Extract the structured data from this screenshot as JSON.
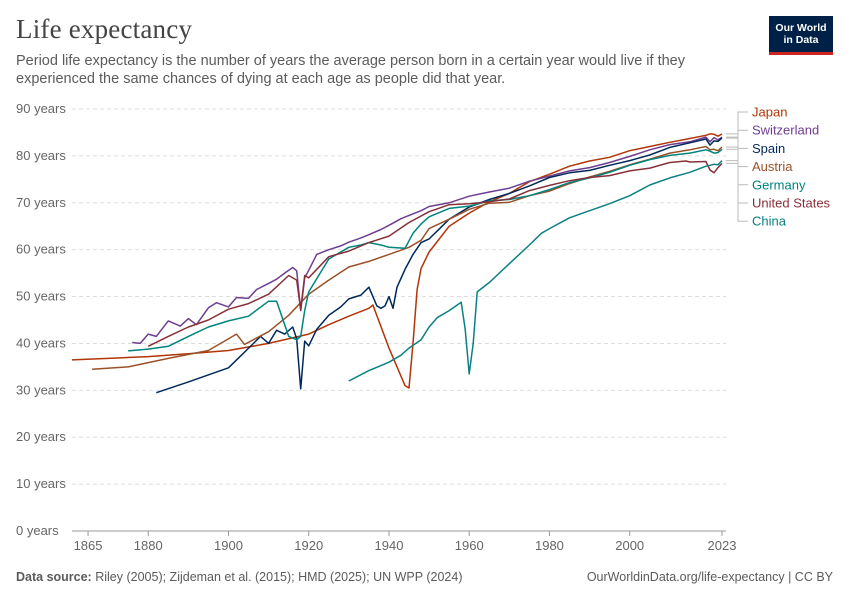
{
  "header": {
    "title": "Life expectancy",
    "subtitle": "Period life expectancy is the number of years the average person born in a certain year would live if they experienced the same chances of dying at each age as people did that year.",
    "logo_line1": "Our World",
    "logo_line2": "in Data"
  },
  "footer": {
    "source_label": "Data source:",
    "source_text": "Riley (2005); Zijdeman et al. (2015); HMD (2025); UN WPP (2024)",
    "url": "OurWorldinData.org/life-expectancy | CC BY"
  },
  "chart_data": {
    "type": "line",
    "title": "Life expectancy",
    "xlabel": "",
    "ylabel": "",
    "xlim": [
      1861,
      2024
    ],
    "ylim": [
      0,
      90
    ],
    "xticks": [
      {
        "value": 1865,
        "label": "1865"
      },
      {
        "value": 1880,
        "label": "1880"
      },
      {
        "value": 1900,
        "label": "1900"
      },
      {
        "value": 1920,
        "label": "1920"
      },
      {
        "value": 1940,
        "label": "1940"
      },
      {
        "value": 1960,
        "label": "1960"
      },
      {
        "value": 1980,
        "label": "1980"
      },
      {
        "value": 2000,
        "label": "2000"
      },
      {
        "value": 2023,
        "label": "2023"
      }
    ],
    "yticks": [
      {
        "value": 0,
        "label": "0 years"
      },
      {
        "value": 10,
        "label": "10 years"
      },
      {
        "value": 20,
        "label": "20 years"
      },
      {
        "value": 30,
        "label": "30 years"
      },
      {
        "value": 40,
        "label": "40 years"
      },
      {
        "value": 50,
        "label": "50 years"
      },
      {
        "value": 60,
        "label": "60 years"
      },
      {
        "value": 70,
        "label": "70 years"
      },
      {
        "value": 80,
        "label": "80 years"
      },
      {
        "value": 90,
        "label": "90 years"
      }
    ],
    "grid": true,
    "legend": "right",
    "series": [
      {
        "name": "Japan",
        "color": "#b13507",
        "points": [
          [
            1861,
            36.5
          ],
          [
            1870,
            36.8
          ],
          [
            1880,
            37.2
          ],
          [
            1890,
            37.8
          ],
          [
            1900,
            38.5
          ],
          [
            1910,
            40.0
          ],
          [
            1920,
            42.0
          ],
          [
            1925,
            44.0
          ],
          [
            1930,
            45.8
          ],
          [
            1935,
            47.5
          ],
          [
            1936,
            48.2
          ],
          [
            1940,
            39.0
          ],
          [
            1944,
            31.0
          ],
          [
            1945,
            30.5
          ],
          [
            1946,
            40.0
          ],
          [
            1947,
            51.5
          ],
          [
            1948,
            56.0
          ],
          [
            1950,
            59.5
          ],
          [
            1955,
            65.0
          ],
          [
            1960,
            67.8
          ],
          [
            1965,
            70.2
          ],
          [
            1970,
            72.0
          ],
          [
            1975,
            74.5
          ],
          [
            1980,
            76.1
          ],
          [
            1985,
            77.8
          ],
          [
            1990,
            78.9
          ],
          [
            1995,
            79.7
          ],
          [
            2000,
            81.1
          ],
          [
            2005,
            82.0
          ],
          [
            2010,
            82.9
          ],
          [
            2015,
            83.7
          ],
          [
            2019,
            84.4
          ],
          [
            2020,
            84.7
          ],
          [
            2021,
            84.6
          ],
          [
            2022,
            84.2
          ],
          [
            2023,
            84.7
          ]
        ]
      },
      {
        "name": "Switzerland",
        "color": "#6d3e91",
        "points": [
          [
            1876,
            40.2
          ],
          [
            1878,
            40.0
          ],
          [
            1880,
            42.0
          ],
          [
            1882,
            41.5
          ],
          [
            1885,
            44.8
          ],
          [
            1888,
            43.7
          ],
          [
            1890,
            45.3
          ],
          [
            1892,
            44.0
          ],
          [
            1895,
            47.6
          ],
          [
            1897,
            48.7
          ],
          [
            1900,
            47.8
          ],
          [
            1902,
            49.8
          ],
          [
            1905,
            49.6
          ],
          [
            1907,
            51.5
          ],
          [
            1910,
            52.8
          ],
          [
            1912,
            53.7
          ],
          [
            1914,
            55.0
          ],
          [
            1916,
            56.2
          ],
          [
            1917,
            55.5
          ],
          [
            1918,
            47.0
          ],
          [
            1919,
            54.0
          ],
          [
            1920,
            55.6
          ],
          [
            1922,
            59.0
          ],
          [
            1925,
            60.0
          ],
          [
            1928,
            60.8
          ],
          [
            1930,
            61.6
          ],
          [
            1933,
            62.5
          ],
          [
            1935,
            63.2
          ],
          [
            1938,
            64.3
          ],
          [
            1940,
            65.2
          ],
          [
            1943,
            66.6
          ],
          [
            1945,
            67.3
          ],
          [
            1948,
            68.3
          ],
          [
            1950,
            69.2
          ],
          [
            1955,
            70.0
          ],
          [
            1960,
            71.4
          ],
          [
            1965,
            72.3
          ],
          [
            1970,
            73.1
          ],
          [
            1975,
            74.6
          ],
          [
            1980,
            75.7
          ],
          [
            1985,
            76.8
          ],
          [
            1990,
            77.5
          ],
          [
            1995,
            78.6
          ],
          [
            2000,
            79.9
          ],
          [
            2005,
            81.3
          ],
          [
            2010,
            82.4
          ],
          [
            2015,
            83.0
          ],
          [
            2019,
            84.0
          ],
          [
            2020,
            83.0
          ],
          [
            2021,
            83.9
          ],
          [
            2022,
            83.4
          ],
          [
            2023,
            84.0
          ]
        ]
      },
      {
        "name": "Spain",
        "color": "#00295b",
        "points": [
          [
            1882,
            29.5
          ],
          [
            1890,
            31.8
          ],
          [
            1900,
            34.8
          ],
          [
            1908,
            41.5
          ],
          [
            1910,
            40.0
          ],
          [
            1912,
            42.8
          ],
          [
            1914,
            42.0
          ],
          [
            1916,
            43.5
          ],
          [
            1917,
            41.0
          ],
          [
            1918,
            30.3
          ],
          [
            1919,
            40.5
          ],
          [
            1920,
            39.5
          ],
          [
            1922,
            43.0
          ],
          [
            1925,
            46.0
          ],
          [
            1928,
            47.8
          ],
          [
            1930,
            49.5
          ],
          [
            1933,
            50.3
          ],
          [
            1935,
            52.0
          ],
          [
            1936,
            50.0
          ],
          [
            1937,
            48.0
          ],
          [
            1938,
            47.5
          ],
          [
            1939,
            48.0
          ],
          [
            1940,
            50.0
          ],
          [
            1941,
            47.5
          ],
          [
            1942,
            52.0
          ],
          [
            1944,
            55.8
          ],
          [
            1946,
            59.0
          ],
          [
            1948,
            61.5
          ],
          [
            1950,
            62.3
          ],
          [
            1953,
            64.8
          ],
          [
            1955,
            66.5
          ],
          [
            1960,
            69.1
          ],
          [
            1965,
            70.7
          ],
          [
            1970,
            72.0
          ],
          [
            1975,
            73.6
          ],
          [
            1980,
            75.4
          ],
          [
            1985,
            76.4
          ],
          [
            1990,
            76.9
          ],
          [
            1995,
            78.0
          ],
          [
            2000,
            79.0
          ],
          [
            2005,
            80.2
          ],
          [
            2010,
            81.8
          ],
          [
            2015,
            82.8
          ],
          [
            2019,
            83.6
          ],
          [
            2020,
            82.3
          ],
          [
            2021,
            83.2
          ],
          [
            2022,
            83.1
          ],
          [
            2023,
            83.8
          ]
        ]
      },
      {
        "name": "Austria",
        "color": "#9a5129",
        "points": [
          [
            1866,
            34.5
          ],
          [
            1875,
            35.0
          ],
          [
            1885,
            36.8
          ],
          [
            1895,
            38.5
          ],
          [
            1902,
            42.0
          ],
          [
            1904,
            39.8
          ],
          [
            1910,
            42.5
          ],
          [
            1915,
            46.0
          ],
          [
            1920,
            50.5
          ],
          [
            1925,
            53.5
          ],
          [
            1930,
            56.3
          ],
          [
            1935,
            57.5
          ],
          [
            1940,
            59.0
          ],
          [
            1945,
            60.5
          ],
          [
            1948,
            62.0
          ],
          [
            1950,
            64.5
          ],
          [
            1955,
            66.5
          ],
          [
            1960,
            68.6
          ],
          [
            1965,
            69.9
          ],
          [
            1970,
            70.1
          ],
          [
            1975,
            71.5
          ],
          [
            1980,
            72.5
          ],
          [
            1985,
            74.1
          ],
          [
            1990,
            75.5
          ],
          [
            1995,
            76.7
          ],
          [
            2000,
            78.1
          ],
          [
            2005,
            79.3
          ],
          [
            2010,
            80.6
          ],
          [
            2015,
            81.3
          ],
          [
            2019,
            82.0
          ],
          [
            2020,
            81.3
          ],
          [
            2021,
            81.4
          ],
          [
            2022,
            81.1
          ],
          [
            2023,
            81.9
          ]
        ]
      },
      {
        "name": "Germany",
        "color": "#00847e",
        "points": [
          [
            1875,
            38.4
          ],
          [
            1880,
            38.8
          ],
          [
            1885,
            39.4
          ],
          [
            1890,
            41.5
          ],
          [
            1895,
            43.5
          ],
          [
            1900,
            44.8
          ],
          [
            1905,
            45.8
          ],
          [
            1910,
            49.0
          ],
          [
            1912,
            49.0
          ],
          [
            1915,
            41.5
          ],
          [
            1917,
            40.8
          ],
          [
            1918,
            41.5
          ],
          [
            1919,
            47.0
          ],
          [
            1920,
            51.0
          ],
          [
            1925,
            58.0
          ],
          [
            1930,
            60.5
          ],
          [
            1933,
            61.0
          ],
          [
            1935,
            61.5
          ],
          [
            1938,
            61.0
          ],
          [
            1940,
            60.5
          ],
          [
            1944,
            60.3
          ],
          [
            1946,
            63.5
          ],
          [
            1948,
            65.5
          ],
          [
            1950,
            67.0
          ],
          [
            1955,
            68.8
          ],
          [
            1960,
            69.3
          ],
          [
            1965,
            70.4
          ],
          [
            1970,
            70.7
          ],
          [
            1975,
            71.5
          ],
          [
            1980,
            72.8
          ],
          [
            1985,
            74.3
          ],
          [
            1990,
            75.3
          ],
          [
            1995,
            76.5
          ],
          [
            2000,
            78.0
          ],
          [
            2005,
            79.2
          ],
          [
            2010,
            80.1
          ],
          [
            2015,
            80.6
          ],
          [
            2019,
            81.3
          ],
          [
            2020,
            81.0
          ],
          [
            2021,
            80.6
          ],
          [
            2022,
            80.7
          ],
          [
            2023,
            81.4
          ]
        ]
      },
      {
        "name": "United States",
        "color": "#883039",
        "points": [
          [
            1880,
            39.4
          ],
          [
            1885,
            41.5
          ],
          [
            1890,
            43.5
          ],
          [
            1895,
            45.0
          ],
          [
            1900,
            47.3
          ],
          [
            1905,
            48.5
          ],
          [
            1910,
            50.5
          ],
          [
            1915,
            54.5
          ],
          [
            1917,
            53.5
          ],
          [
            1918,
            47.2
          ],
          [
            1919,
            54.5
          ],
          [
            1920,
            54.0
          ],
          [
            1925,
            58.5
          ],
          [
            1930,
            59.7
          ],
          [
            1935,
            61.5
          ],
          [
            1940,
            62.9
          ],
          [
            1945,
            65.8
          ],
          [
            1950,
            68.1
          ],
          [
            1955,
            69.6
          ],
          [
            1960,
            69.8
          ],
          [
            1965,
            70.2
          ],
          [
            1970,
            70.8
          ],
          [
            1975,
            72.6
          ],
          [
            1980,
            73.7
          ],
          [
            1985,
            74.7
          ],
          [
            1990,
            75.4
          ],
          [
            1995,
            75.8
          ],
          [
            2000,
            76.8
          ],
          [
            2005,
            77.4
          ],
          [
            2010,
            78.6
          ],
          [
            2014,
            78.9
          ],
          [
            2015,
            78.7
          ],
          [
            2019,
            78.8
          ],
          [
            2020,
            77.0
          ],
          [
            2021,
            76.4
          ],
          [
            2022,
            77.5
          ],
          [
            2023,
            78.4
          ]
        ]
      },
      {
        "name": "China",
        "color": "#0b8083",
        "points": [
          [
            1930,
            32.0
          ],
          [
            1935,
            34.2
          ],
          [
            1940,
            36.0
          ],
          [
            1943,
            37.5
          ],
          [
            1945,
            39.0
          ],
          [
            1948,
            40.8
          ],
          [
            1950,
            43.5
          ],
          [
            1952,
            45.5
          ],
          [
            1955,
            47.0
          ],
          [
            1958,
            48.8
          ],
          [
            1959,
            43.0
          ],
          [
            1960,
            33.5
          ],
          [
            1961,
            40.0
          ],
          [
            1962,
            51.0
          ],
          [
            1965,
            53.0
          ],
          [
            1970,
            57.0
          ],
          [
            1975,
            61.0
          ],
          [
            1978,
            63.5
          ],
          [
            1980,
            64.5
          ],
          [
            1985,
            66.8
          ],
          [
            1990,
            68.3
          ],
          [
            1995,
            69.8
          ],
          [
            2000,
            71.5
          ],
          [
            2005,
            73.8
          ],
          [
            2010,
            75.3
          ],
          [
            2015,
            76.5
          ],
          [
            2019,
            77.8
          ],
          [
            2020,
            78.0
          ],
          [
            2021,
            78.2
          ],
          [
            2022,
            78.1
          ],
          [
            2023,
            79.0
          ]
        ]
      }
    ]
  }
}
